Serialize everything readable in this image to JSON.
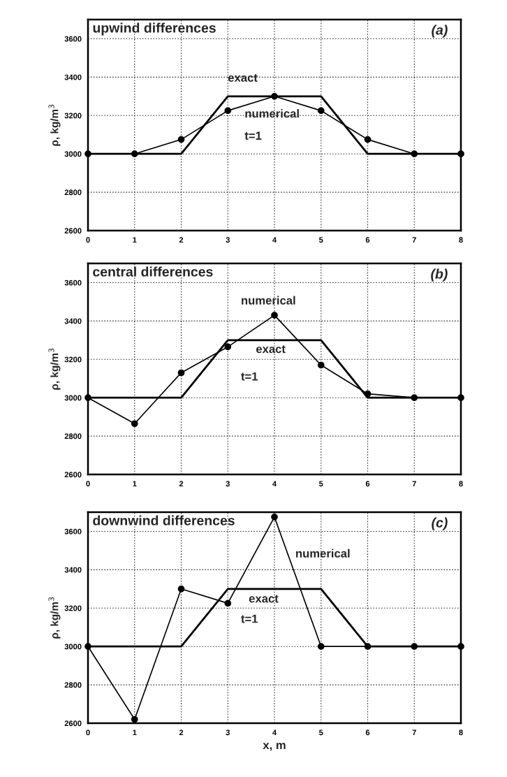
{
  "chart_data": [
    {
      "type": "line",
      "title": "upwind differences",
      "ylabel": "ρ, kg/m$^{3}$",
      "x": [
        0,
        1,
        2,
        3,
        4,
        5,
        6,
        7,
        8
      ],
      "xlim": [
        0,
        8
      ],
      "xticks": [
        0,
        1,
        2,
        3,
        4,
        5,
        6,
        7,
        8
      ],
      "ylim": [
        2600,
        3700
      ],
      "yticks": [
        2600,
        2800,
        3000,
        3200,
        3400,
        3600
      ],
      "grid": true,
      "series": [
        {
          "name": "numerical",
          "color": "#000000",
          "marker": "circle",
          "line_style": "solid",
          "values": [
            3000,
            3000,
            3075,
            3225,
            3300,
            3225,
            3075,
            3000,
            3000
          ]
        },
        {
          "name": "exact",
          "color": "#000000",
          "marker": "none",
          "line_style": "solid",
          "values": [
            3000,
            3000,
            3000,
            3300,
            3300,
            3300,
            3000,
            3000,
            3000
          ]
        }
      ],
      "annotations": [
        "t=1",
        "(a)"
      ]
    },
    {
      "type": "line",
      "title": "central differences",
      "ylabel": "ρ, kg/m$^{3}$",
      "x": [
        0,
        1,
        2,
        3,
        4,
        5,
        6,
        7,
        8
      ],
      "xlim": [
        0,
        8
      ],
      "xticks": [
        0,
        1,
        2,
        3,
        4,
        5,
        6,
        7,
        8
      ],
      "ylim": [
        2600,
        3700
      ],
      "yticks": [
        2600,
        2800,
        3000,
        3200,
        3400,
        3600
      ],
      "grid": true,
      "series": [
        {
          "name": "numerical",
          "color": "#000000",
          "marker": "circle",
          "line_style": "solid",
          "values": [
            3000,
            2865,
            3130,
            3265,
            3430,
            3170,
            3020,
            3000,
            3000
          ]
        },
        {
          "name": "exact",
          "color": "#000000",
          "marker": "none",
          "line_style": "solid",
          "values": [
            3000,
            3000,
            3000,
            3300,
            3300,
            3300,
            3000,
            3000,
            3000
          ]
        }
      ],
      "annotations": [
        "t=1",
        "(b)"
      ]
    },
    {
      "type": "line",
      "title": "downwind differences",
      "xlabel": "x, m",
      "ylabel": "ρ, kg/m$^{3}$",
      "x": [
        0,
        1,
        2,
        3,
        4,
        5,
        6,
        7,
        8
      ],
      "xlim": [
        0,
        8
      ],
      "xticks": [
        0,
        1,
        2,
        3,
        4,
        5,
        6,
        7,
        8
      ],
      "ylim": [
        2600,
        3700
      ],
      "yticks": [
        2600,
        2800,
        3000,
        3200,
        3400,
        3600
      ],
      "grid": true,
      "series": [
        {
          "name": "numerical",
          "color": "#000000",
          "marker": "circle",
          "line_style": "solid",
          "values": [
            3000,
            2620,
            3300,
            3225,
            3675,
            3000,
            3000,
            3000,
            3000
          ]
        },
        {
          "name": "exact",
          "color": "#000000",
          "marker": "none",
          "line_style": "solid",
          "values": [
            3000,
            3000,
            3000,
            3300,
            3300,
            3300,
            3000,
            3000,
            3000
          ]
        }
      ],
      "annotations": [
        "t=1",
        "(c)"
      ]
    }
  ]
}
